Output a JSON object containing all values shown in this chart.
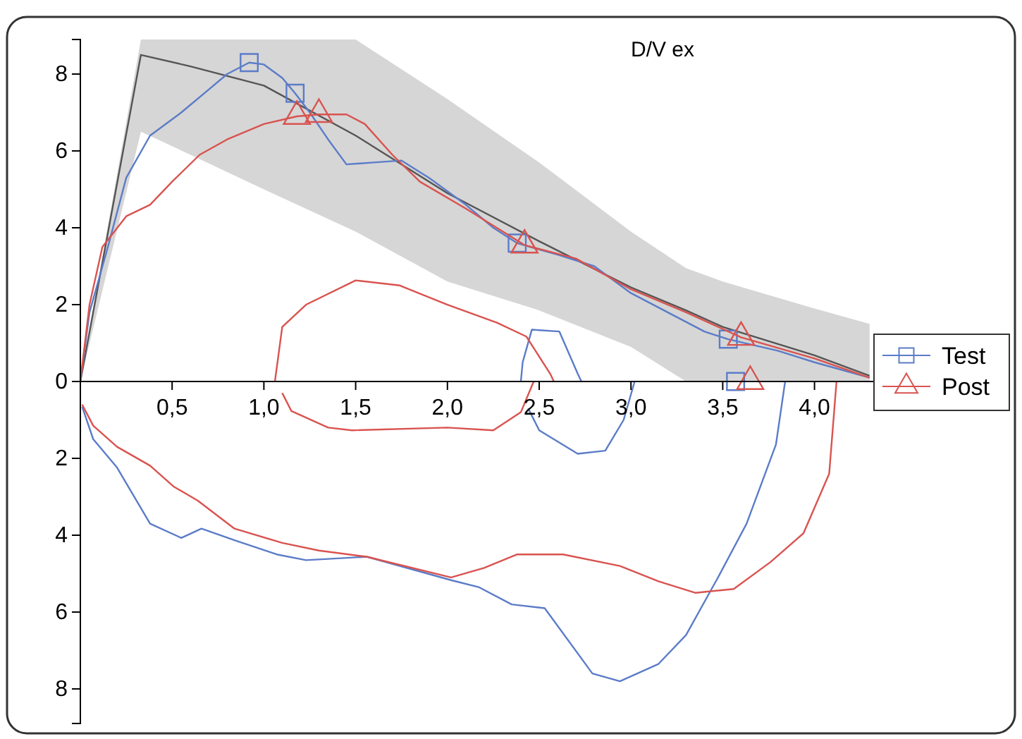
{
  "chart_data": {
    "type": "line",
    "title": "D/V ex",
    "xlim": [
      0,
      4.5
    ],
    "ylim": [
      -8.9,
      8.9
    ],
    "xticks": [
      {
        "value": 0.5,
        "label": "0,5"
      },
      {
        "value": 1,
        "label": "1,0"
      },
      {
        "value": 1.5,
        "label": "1,5"
      },
      {
        "value": 2,
        "label": "2,0"
      },
      {
        "value": 2.5,
        "label": "2,5"
      },
      {
        "value": 3,
        "label": "3,0"
      },
      {
        "value": 3.5,
        "label": "3,5"
      },
      {
        "value": 4,
        "label": "4,0"
      }
    ],
    "yticks": [
      {
        "value": -8,
        "label": "8"
      },
      {
        "value": -6,
        "label": "6"
      },
      {
        "value": -4,
        "label": "4"
      },
      {
        "value": -2,
        "label": "2"
      },
      0,
      2,
      4,
      6,
      8
    ],
    "grid": false,
    "legend": "right",
    "line_style": "solid",
    "series": [
      {
        "color": "#555555",
        "x": [
          0,
          0.33,
          0.6,
          1.0,
          1.5,
          2.0,
          2.5,
          3.0,
          3.3,
          3.5,
          4.0,
          4.3
        ],
        "values": [
          0,
          8.5,
          8.2,
          7.7,
          6.4,
          4.9,
          3.65,
          2.45,
          1.85,
          1.42,
          0.68,
          0.15
        ],
        "lower": [
          0,
          6.5,
          5.9,
          5.0,
          3.9,
          2.6,
          1.85,
          0.9,
          0,
          0,
          0,
          0
        ],
        "upper": [
          0,
          8.9,
          8.9,
          8.9,
          8.9,
          7.35,
          5.7,
          3.9,
          2.95,
          2.6,
          1.9,
          1.5
        ]
      },
      {
        "name": "Test",
        "color": "#5b7cc8",
        "x": [
          0,
          0.05,
          0.15,
          0.25,
          0.38,
          0.55,
          0.7,
          0.8,
          0.92,
          1.0,
          1.1,
          1.17,
          1.25,
          1.35,
          1.45,
          1.6,
          1.75,
          1.9,
          2.1,
          2.25,
          2.38,
          2.6,
          2.8,
          3.0,
          3.2,
          3.4,
          3.53,
          3.8,
          4.0,
          4.3
        ],
        "values": [
          0,
          1.8,
          3.5,
          5.3,
          6.4,
          7.0,
          7.6,
          8.0,
          8.3,
          8.25,
          7.9,
          7.5,
          7.0,
          6.3,
          5.65,
          5.7,
          5.75,
          5.3,
          4.6,
          4.0,
          3.6,
          3.3,
          3.0,
          2.3,
          1.8,
          1.3,
          1.1,
          0.8,
          0.5,
          0.1
        ]
      },
      {
        "color": "#5b7cc8",
        "x": [
          0.01,
          0.07,
          0.2,
          0.38,
          0.55,
          0.66,
          0.84,
          1.07,
          1.23,
          1.56,
          2.02,
          2.17,
          2.35,
          2.53,
          2.79,
          2.94,
          3.15,
          3.3,
          3.48,
          3.63,
          3.79,
          3.84
        ],
        "values": [
          -0.66,
          -1.5,
          -2.24,
          -3.7,
          -4.07,
          -3.83,
          -4.13,
          -4.5,
          -4.65,
          -4.56,
          -5.17,
          -5.35,
          -5.8,
          -5.9,
          -7.6,
          -7.8,
          -7.35,
          -6.6,
          -5.05,
          -3.7,
          -1.64,
          0
        ]
      },
      {
        "color": "#5b7cc8",
        "x": [
          2.4,
          2.41,
          2.46,
          2.61,
          2.71,
          2.73
        ],
        "values": [
          0,
          0.5,
          1.35,
          1.3,
          0.2,
          0
        ]
      },
      {
        "color": "#5b7cc8",
        "x": [
          2.44,
          2.5,
          2.71,
          2.86,
          2.96,
          3.02
        ],
        "values": [
          -0.7,
          -1.27,
          -1.88,
          -1.8,
          -1.0,
          0
        ]
      },
      {
        "type": "scatter",
        "marker": "square",
        "color": "#5b7cc8",
        "x": [
          0.92,
          1.17,
          2.38,
          3.53,
          3.57
        ],
        "values": [
          8.3,
          7.5,
          3.6,
          1.1,
          0
        ]
      },
      {
        "name": "Post",
        "color": "#d9534f",
        "x": [
          0,
          0.05,
          0.12,
          0.25,
          0.38,
          0.5,
          0.65,
          0.8,
          1.0,
          1.18,
          1.3,
          1.45,
          1.55,
          1.7,
          1.85,
          2.1,
          2.42,
          2.7,
          3.0,
          3.3,
          3.6,
          4.0,
          4.3
        ],
        "values": [
          0,
          2.0,
          3.5,
          4.3,
          4.6,
          5.2,
          5.9,
          6.3,
          6.7,
          6.9,
          6.95,
          6.95,
          6.7,
          5.9,
          5.2,
          4.5,
          3.55,
          3.2,
          2.4,
          1.8,
          1.15,
          0.6,
          0.1
        ]
      },
      {
        "color": "#d9534f",
        "x": [
          0.01,
          0.07,
          0.2,
          0.38,
          0.51,
          0.64,
          0.84,
          1.1,
          1.3,
          1.56,
          2.02,
          2.2,
          2.38,
          2.63,
          2.94,
          3.15,
          3.35,
          3.56,
          3.76,
          3.94,
          4.08,
          4.12
        ],
        "values": [
          -0.6,
          -1.15,
          -1.7,
          -2.19,
          -2.74,
          -3.1,
          -3.83,
          -4.2,
          -4.4,
          -4.56,
          -5.1,
          -4.85,
          -4.5,
          -4.5,
          -4.8,
          -5.2,
          -5.5,
          -5.4,
          -4.7,
          -3.95,
          -2.4,
          0
        ]
      },
      {
        "color": "#d9534f",
        "x": [
          1.06,
          1.1,
          1.23,
          1.5,
          1.74,
          2.0,
          2.27,
          2.43,
          2.56,
          2.58
        ],
        "values": [
          0,
          1.42,
          2.0,
          2.63,
          2.5,
          2.0,
          1.53,
          1.17,
          0.2,
          0
        ]
      },
      {
        "color": "#d9534f",
        "x": [
          1.1,
          1.15,
          1.35,
          1.48,
          2.0,
          2.25,
          2.4,
          2.47
        ],
        "values": [
          -0.3,
          -0.77,
          -1.2,
          -1.27,
          -1.2,
          -1.27,
          -0.8,
          0
        ]
      },
      {
        "type": "scatter",
        "marker": "triangle",
        "color": "#d9534f",
        "x": [
          1.18,
          1.3,
          2.42,
          3.6,
          3.65
        ],
        "values": [
          6.9,
          6.95,
          3.55,
          1.15,
          0
        ]
      }
    ]
  }
}
